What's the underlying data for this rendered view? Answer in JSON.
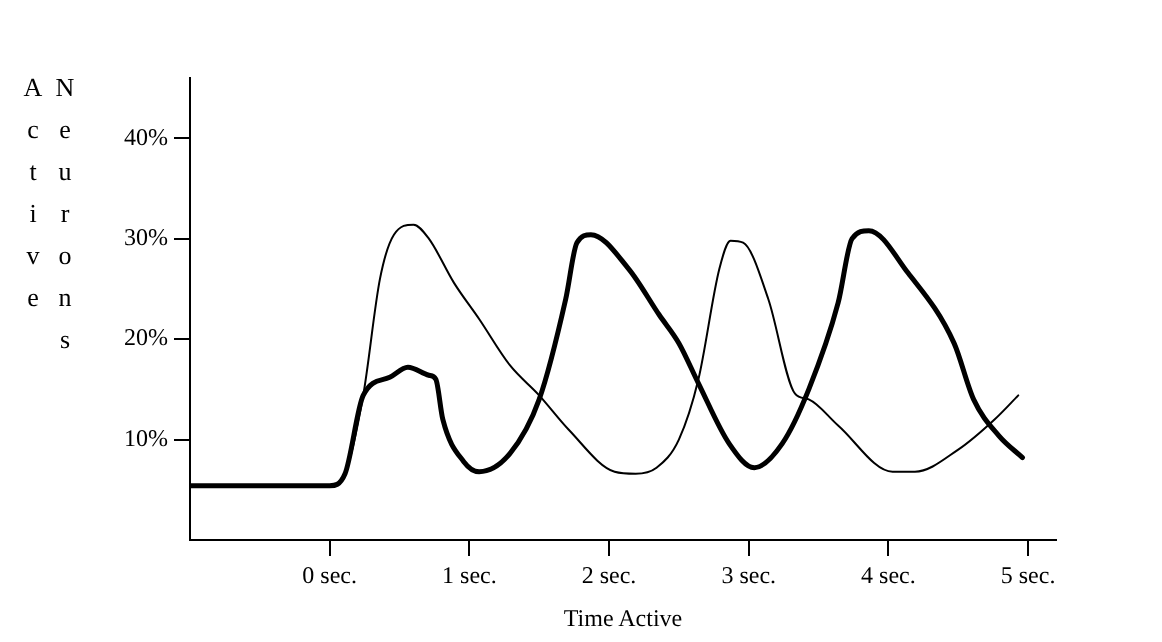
{
  "chart_data": {
    "type": "line",
    "xlabel": "Time Active",
    "ylabel": "Neurons Active",
    "xlim": [
      -1,
      5.2
    ],
    "ylim": [
      0,
      46
    ],
    "xticks": [
      {
        "value": 0,
        "label": "0 sec."
      },
      {
        "value": 1,
        "label": "1 sec."
      },
      {
        "value": 2,
        "label": "2 sec."
      },
      {
        "value": 3,
        "label": "3 sec."
      },
      {
        "value": 4,
        "label": "4 sec."
      },
      {
        "value": 5,
        "label": "5 sec."
      }
    ],
    "yticks": [
      {
        "value": 10,
        "label": "10%"
      },
      {
        "value": 20,
        "label": "20%"
      },
      {
        "value": 30,
        "label": "30%"
      },
      {
        "value": 40,
        "label": "40%"
      }
    ],
    "grid": false,
    "legend": false,
    "marker": "none",
    "line_style": "solid",
    "series": [
      {
        "color": "#000000",
        "x": [
          -1,
          0,
          0.11,
          0.24,
          0.43,
          0.56,
          0.71,
          0.76,
          0.81,
          0.96,
          1.07,
          1.29,
          1.5,
          1.69,
          1.77,
          1.87,
          2.14,
          2.36,
          2.5,
          2.64,
          2.86,
          3.04,
          3.24,
          3.43,
          3.64,
          3.74,
          3.86,
          4.14,
          4.47,
          4.61,
          4.79,
          4.96
        ],
        "values": [
          5.4,
          5.4,
          6.6,
          14.4,
          16.2,
          17.2,
          16.4,
          16,
          12,
          7.8,
          6.8,
          8.6,
          14,
          24,
          29.6,
          30.4,
          27,
          22.4,
          19.6,
          15.6,
          9.6,
          7.2,
          9.6,
          15,
          23.6,
          30,
          30.8,
          26.6,
          19.6,
          14,
          10.4,
          8.2
        ]
      },
      {
        "color": "#000000",
        "x": [
          -1,
          0,
          0.11,
          0.24,
          0.36,
          0.46,
          0.6,
          0.71,
          0.89,
          1.07,
          1.29,
          1.5,
          1.71,
          2.04,
          2.19,
          2.34,
          2.5,
          2.64,
          2.79,
          2.87,
          2.96,
          3.14,
          3.33,
          3.43,
          3.64,
          4.03,
          4.19,
          4.5,
          4.76,
          4.93
        ],
        "values": [
          5.4,
          5.4,
          6.6,
          14.4,
          26,
          30.4,
          31.4,
          30,
          25.6,
          22,
          17.4,
          14.4,
          11,
          6.8,
          6.6,
          7.2,
          10,
          16,
          27,
          29.8,
          29.6,
          24,
          14.6,
          14,
          11.4,
          6.8,
          6.8,
          9,
          12,
          14.4
        ]
      }
    ]
  }
}
